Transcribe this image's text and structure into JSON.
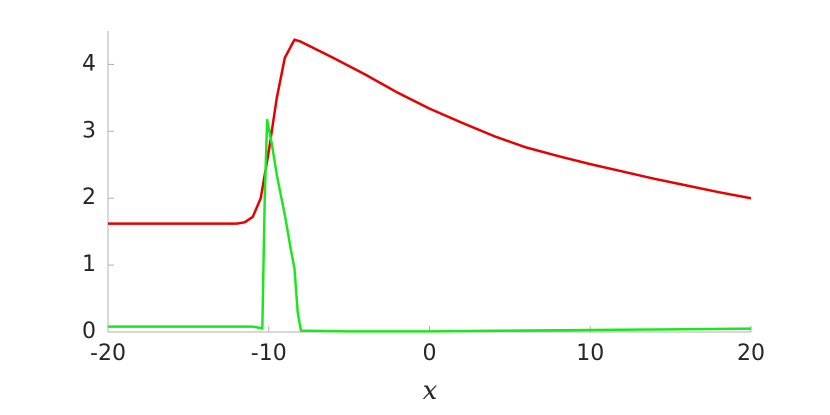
{
  "chart_data": {
    "type": "line",
    "x_label": "x",
    "xlim": [
      -20,
      20
    ],
    "xticks": [
      -20,
      -10,
      0,
      10,
      20
    ],
    "ylim": [
      0,
      4.5
    ],
    "yticks": [
      0,
      1,
      2,
      3,
      4
    ],
    "series": [
      {
        "color": "#e60000",
        "x": [
          -20,
          -15,
          -12,
          -11.5,
          -11,
          -10.5,
          -10,
          -9.5,
          -9,
          -8.4,
          -8,
          -6,
          -4,
          -2,
          0,
          2,
          4,
          6,
          8,
          10,
          12,
          14,
          16,
          18,
          20
        ],
        "values": [
          1.62,
          1.62,
          1.62,
          1.64,
          1.72,
          2.0,
          2.7,
          3.5,
          4.1,
          4.37,
          4.34,
          4.1,
          3.85,
          3.58,
          3.34,
          3.13,
          2.93,
          2.76,
          2.63,
          2.51,
          2.4,
          2.29,
          2.19,
          2.09,
          2.0
        ]
      },
      {
        "color": "#1ee61e",
        "x": [
          -20,
          -15,
          -11,
          -10.5,
          -10.4,
          -10.25,
          -10.1,
          -9.8,
          -9.5,
          -9,
          -8.6,
          -8.4,
          -8.2,
          -8.0,
          -5,
          0,
          5,
          10,
          15,
          20
        ],
        "values": [
          0.08,
          0.08,
          0.08,
          0.06,
          0.05,
          2.0,
          3.17,
          2.8,
          2.35,
          1.75,
          1.2,
          0.95,
          0.3,
          0.02,
          0.01,
          0.01,
          0.02,
          0.03,
          0.04,
          0.05
        ]
      }
    ]
  }
}
